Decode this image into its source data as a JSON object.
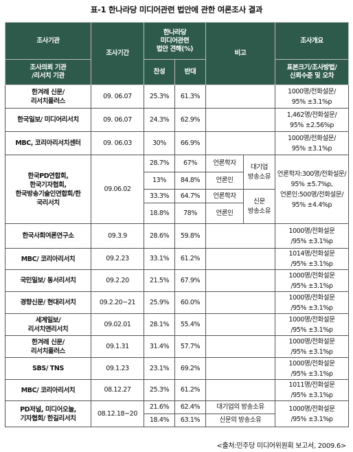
{
  "title": "표-1 한나라당 미디어관련 법안에 관한 여론조사 결과",
  "header": {
    "org1": "조사기관",
    "org2": "조사의뢰 기관",
    "org3": "/리서치 기관",
    "period": "조사기간",
    "opinion1": "한나라당",
    "opinion2": "미디어관련",
    "opinion3": "법안 견해(%)",
    "agree": "찬성",
    "oppose": "반대",
    "note": "비고",
    "summary1": "조사개요",
    "summary2": "표본크기/조사방법/",
    "summary3": "신뢰수준 및 오차"
  },
  "rows": [
    {
      "org": [
        "한겨레 신문/",
        "리서치플러스"
      ],
      "period": "09. 06.07",
      "agree": "25.3%",
      "oppose": "61.3%",
      "summary": [
        "1000명/전화설문/",
        "95% ±3.1%p"
      ]
    },
    {
      "org": [
        "한국일보/ 미디어리서치"
      ],
      "period": "09. 06.07",
      "agree": "24.3%",
      "oppose": "62.9%",
      "summary": [
        "1,462명/전화설문/",
        "95% ±2.56%p"
      ]
    },
    {
      "org": [
        "MBC, 코리아리서치센터"
      ],
      "period": "09. 06.03",
      "agree": "30%",
      "oppose": "66.9%",
      "summary": [
        "1000명/전화설문/",
        "95% ±3.1%p"
      ]
    }
  ],
  "pd_group": {
    "org": [
      "한국PD연합회,",
      "한국기자협회,",
      "한국방송기술인연합회/한",
      "국리서치"
    ],
    "period": "09.06.02",
    "sub": [
      {
        "agree": "28.7%",
        "oppose": "67%",
        "note": "언론학자"
      },
      {
        "agree": "13%",
        "oppose": "84.8%",
        "note": "언론인"
      },
      {
        "agree": "33.3%",
        "oppose": "64.7%",
        "note": "언론학자"
      },
      {
        "agree": "18.8%",
        "oppose": "78%",
        "note": "언론인"
      }
    ],
    "cat1": [
      "대기업",
      "방송소유"
    ],
    "cat2": [
      "신문",
      "방송소유"
    ],
    "summary": [
      "언론학자:300명/전화설문/",
      "95% ±5.7%p,",
      "언론인:500명/전화설문/",
      "95% ±4.4%p"
    ]
  },
  "rows2": [
    {
      "org": [
        "한국사회여론연구소"
      ],
      "period": "09.3.9",
      "agree": "28.6%",
      "oppose": "59.8%",
      "summary": [
        "1000명/전화설문",
        "/95% ±3.1%p"
      ]
    },
    {
      "org": [
        "MBC/ 코리아리서치"
      ],
      "period": "09.2.23",
      "agree": "33.1%",
      "oppose": "61.2%",
      "summary": [
        "1014명/전화설문",
        "/95% ±3.1%p"
      ]
    },
    {
      "org": [
        "국민일보/ 동서리서치"
      ],
      "period": "09.2.20",
      "agree": "21.5%",
      "oppose": "67.9%",
      "summary": [
        "1000명/전화설문",
        "/95% ±3.1%p"
      ]
    },
    {
      "org": [
        "경향신문/ 현대리서치"
      ],
      "period": "09.2.20~21",
      "agree": "25.9%",
      "oppose": "60.0%",
      "summary": [
        "1000명/전화설문",
        "/95% ±3.1%p"
      ]
    },
    {
      "org": [
        "세계일보/",
        "리서치앤리서치"
      ],
      "period": "09.02.01",
      "agree": "28.1%",
      "oppose": "55.4%",
      "summary": [
        "1000명/전화설문",
        "/95% ±3.1%p"
      ]
    },
    {
      "org": [
        "한겨레 신문/",
        "리서치플러스"
      ],
      "period": "09.1.31",
      "agree": "31.4%",
      "oppose": "57.7%",
      "summary": [
        "1000명/전화설문",
        "/95% ±3.1%p"
      ]
    },
    {
      "org": [
        "SBS/ TNS"
      ],
      "period": "09.1.23",
      "agree": "23.1%",
      "oppose": "69.2%",
      "summary": [
        "1000명/전화설문",
        "/95% ±3.1%p"
      ]
    },
    {
      "org": [
        "MBC/ 코리아리서치"
      ],
      "period": "08.12.27",
      "agree": "25.3%",
      "oppose": "61.2%",
      "summary": [
        "1011명/전화설문",
        "/95% ±3.1%p"
      ]
    }
  ],
  "last_group": {
    "org": [
      "PD저널, 미디어오늘,",
      "기자협회/ 한길리서치"
    ],
    "period": "08.12.18~20",
    "sub": [
      {
        "agree": "21.6%",
        "oppose": "62.4%",
        "note": "대기업의 방송소유"
      },
      {
        "agree": "18.4%",
        "oppose": "63.1%",
        "note": "신문의 방송소유"
      }
    ],
    "summary": [
      "1000명/전화설문",
      "/95% ±3.1%p"
    ]
  },
  "source": "<출처:민주당 미디어위원회 보고서, 2009.6>"
}
